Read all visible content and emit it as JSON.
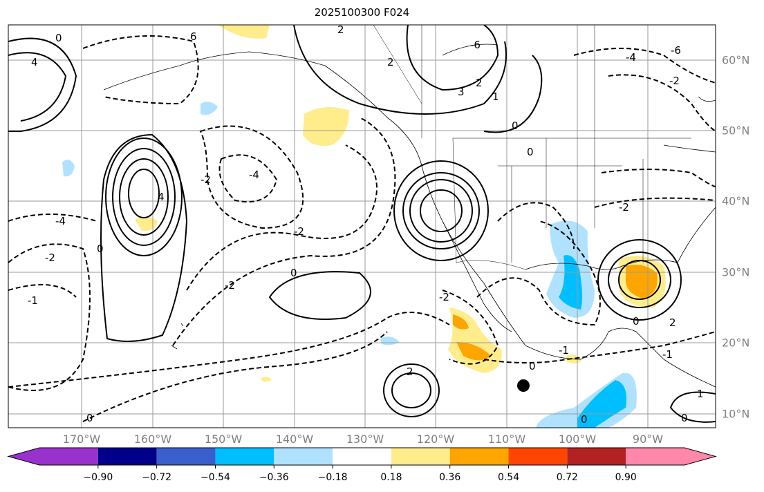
{
  "title": "2025100300 F024",
  "lon_labels": [
    "170°W",
    "160°W",
    "150°W",
    "140°W",
    "130°W",
    "120°W",
    "110°W",
    "100°W",
    "90°W"
  ],
  "lat_labels": [
    "60°N",
    "50°N",
    "40°N",
    "30°N",
    "20°N",
    "10°N"
  ],
  "colorbar": {
    "ticks": [
      "−0.90",
      "−0.72",
      "−0.54",
      "−0.36",
      "−0.18",
      "0.18",
      "0.36",
      "0.54",
      "0.72",
      "0.90"
    ],
    "colors": [
      "#9932cc",
      "#00008b",
      "#3a5fcd",
      "#00bfff",
      "#b0e2ff",
      "#ffffff",
      "#ffec8b",
      "#ffa500",
      "#ff4500",
      "#b22222",
      "#ff87a9"
    ]
  },
  "contour_labels": [
    "0",
    "4",
    "6",
    "2",
    "2",
    "-4",
    "-4",
    "0",
    "4",
    "-2",
    "0",
    "0",
    "-2",
    "-2",
    "0",
    "2",
    "-2",
    "0",
    "2",
    "-1",
    "0",
    "1",
    "-1",
    "0",
    "-6",
    "-2",
    "-4",
    "-6",
    "3",
    "2",
    "1",
    "0",
    "-2",
    "-2",
    "0",
    "-1"
  ],
  "marker": "storm-center-dot"
}
